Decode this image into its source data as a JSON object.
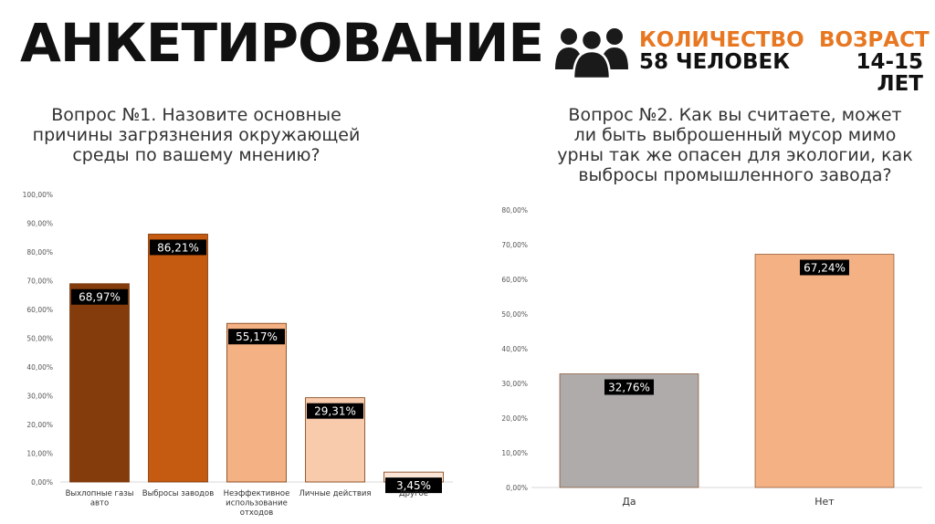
{
  "header": {
    "title": "АНКЕТИРОВАНИЕ",
    "count_label": "КОЛИЧЕСТВО",
    "count_value": "58 ЧЕЛОВЕК",
    "age_label": "ВОЗРАСТ",
    "age_value": "14-15 ЛЕТ",
    "accent_color": "#E87722",
    "icon": "people-group-icon"
  },
  "questions": {
    "q1_lines": [
      "Вопрос №1. Назовите основные",
      "причины загрязнения окружающей",
      "среды по вашему мнению?"
    ],
    "q2_lines": [
      "Вопрос №2. Как вы считаете, может",
      "ли быть выброшенный мусор мимо",
      "урны так же опасен для экологии, как",
      "выбросы промышленного завода?"
    ]
  },
  "chart_data": [
    {
      "type": "bar",
      "categories": [
        [
          "Выхлопные газы",
          "авто"
        ],
        [
          "Выбросы заводов"
        ],
        [
          "Неэффективное",
          "использование",
          "отходов"
        ],
        [
          "Личные действия"
        ],
        [
          "Другое"
        ]
      ],
      "values": [
        68.97,
        86.21,
        55.17,
        29.31,
        3.45
      ],
      "value_labels": [
        "68,97%",
        "86,21%",
        "55,17%",
        "29,31%",
        "3,45%"
      ],
      "colors": [
        "#843C0C",
        "#C55A11",
        "#F4B183",
        "#F8CBAD",
        "#FBE5D6"
      ],
      "ylim": [
        0,
        100
      ],
      "yticks": [
        "0,00%",
        "10,00%",
        "20,00%",
        "30,00%",
        "40,00%",
        "50,00%",
        "60,00%",
        "70,00%",
        "80,00%",
        "90,00%",
        "100,00%"
      ],
      "grid": false
    },
    {
      "type": "bar",
      "categories": [
        [
          "Да"
        ],
        [
          "Нет"
        ]
      ],
      "values": [
        32.76,
        67.24
      ],
      "value_labels": [
        "32,76%",
        "67,24%"
      ],
      "colors": [
        "#AFABAB",
        "#F4B183"
      ],
      "ylim": [
        0,
        80
      ],
      "yticks": [
        "0,00%",
        "10,00%",
        "20,00%",
        "30,00%",
        "40,00%",
        "50,00%",
        "60,00%",
        "70,00%",
        "80,00%"
      ],
      "grid": false
    }
  ]
}
